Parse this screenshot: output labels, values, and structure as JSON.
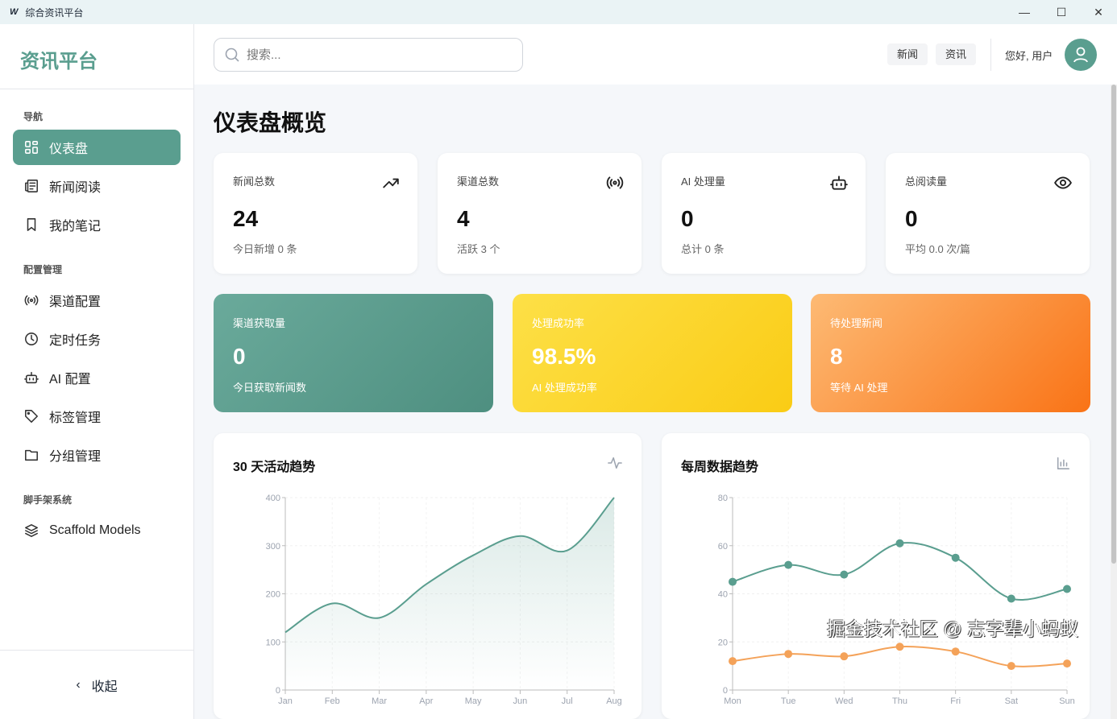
{
  "window": {
    "title": "综合资讯平台",
    "logo": "W"
  },
  "sidebar": {
    "brand": "资讯平台",
    "sections": [
      {
        "title": "导航",
        "items": [
          {
            "label": "仪表盘",
            "icon": "dashboard-icon",
            "active": true
          },
          {
            "label": "新闻阅读",
            "icon": "newspaper-icon"
          },
          {
            "label": "我的笔记",
            "icon": "bookmark-icon"
          }
        ]
      },
      {
        "title": "配置管理",
        "items": [
          {
            "label": "渠道配置",
            "icon": "broadcast-icon"
          },
          {
            "label": "定时任务",
            "icon": "clock-icon"
          },
          {
            "label": "AI 配置",
            "icon": "robot-icon"
          },
          {
            "label": "标签管理",
            "icon": "tag-icon"
          },
          {
            "label": "分组管理",
            "icon": "folder-icon"
          }
        ]
      },
      {
        "title": "脚手架系统",
        "items": [
          {
            "label": "Scaffold Models",
            "icon": "layers-icon"
          }
        ]
      }
    ],
    "collapse": "收起"
  },
  "header": {
    "search_placeholder": "搜索...",
    "buttons": [
      "新闻",
      "资讯"
    ],
    "greeting": "您好, 用户"
  },
  "main": {
    "title": "仪表盘概览",
    "stats": [
      {
        "label": "新闻总数",
        "value": "24",
        "sub": "今日新增 0 条",
        "icon": "trending-up-icon"
      },
      {
        "label": "渠道总数",
        "value": "4",
        "sub": "活跃 3 个",
        "icon": "broadcast-icon"
      },
      {
        "label": "AI 处理量",
        "value": "0",
        "sub": "总计 0 条",
        "icon": "robot-icon"
      },
      {
        "label": "总阅读量",
        "value": "0",
        "sub": "平均 0.0 次/篇",
        "icon": "eye-icon"
      }
    ],
    "highlights": [
      {
        "label": "渠道获取量",
        "value": "0",
        "sub": "今日获取新闻数",
        "colors": [
          "#6aaa9b",
          "#4e8f80"
        ]
      },
      {
        "label": "处理成功率",
        "value": "98.5%",
        "sub": "AI 处理成功率",
        "colors": [
          "#fde047",
          "#facc15"
        ]
      },
      {
        "label": "待处理新闻",
        "value": "8",
        "sub": "等待 AI 处理",
        "colors": [
          "#fdba74",
          "#f97316"
        ]
      }
    ]
  },
  "chart_data": [
    {
      "type": "area",
      "title": "30 天活动趋势",
      "icon": "activity-icon",
      "categories": [
        "Jan",
        "Feb",
        "Mar",
        "Apr",
        "May",
        "Jun",
        "Jul",
        "Aug"
      ],
      "values": [
        120,
        180,
        150,
        220,
        280,
        320,
        290,
        400
      ],
      "ylim": [
        0,
        400
      ],
      "yticks": [
        0,
        100,
        200,
        300,
        400
      ],
      "color": "#5a9e8f",
      "grid": true
    },
    {
      "type": "line",
      "title": "每周数据趋势",
      "icon": "bar-chart-icon",
      "categories": [
        "Mon",
        "Tue",
        "Wed",
        "Thu",
        "Fri",
        "Sat",
        "Sun"
      ],
      "series": [
        {
          "values": [
            45,
            52,
            48,
            61,
            55,
            38,
            42
          ],
          "color": "#5a9e8f"
        },
        {
          "values": [
            12,
            15,
            14,
            18,
            16,
            10,
            11
          ],
          "color": "#f4a259"
        }
      ],
      "ylim": [
        0,
        80
      ],
      "yticks": [
        0,
        20,
        40,
        60,
        80
      ],
      "grid": true
    }
  ],
  "watermark": "掘金技术社区 @ 志字辈小蚂蚁"
}
